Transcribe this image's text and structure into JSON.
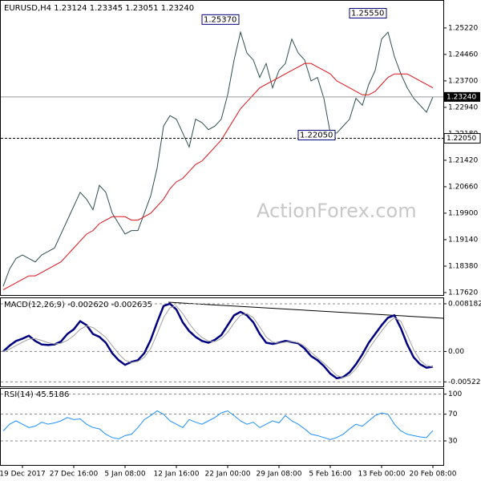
{
  "chart_data": [
    {
      "type": "line",
      "title": "EURUSD,H4 1.23124 1.23345 1.23051 1.23240",
      "watermark": "ActionForex.com",
      "categories": [
        null,
        null,
        null,
        "19 Dec 2017",
        null,
        null,
        null,
        null,
        null,
        null,
        null,
        "27 Dec 16:00",
        null,
        null,
        null,
        null,
        null,
        null,
        null,
        "5 Jan 08:00",
        null,
        null,
        null,
        null,
        null,
        null,
        null,
        "12 Jan 16:00",
        null,
        null,
        null,
        null,
        null,
        null,
        null,
        "22 Jan 00:00",
        null,
        null,
        null,
        null,
        null,
        null,
        null,
        "29 Jan 08:00",
        null,
        null,
        null,
        null,
        null,
        null,
        null,
        "5 Feb 16:00",
        null,
        null,
        null,
        null,
        null,
        null,
        null,
        "13 Feb 00:00",
        null,
        null,
        null,
        null,
        null,
        null,
        null,
        "20 Feb 08:00"
      ],
      "series": [
        {
          "color": "#2f4f4f",
          "values": [
            1.178,
            1.183,
            1.186,
            1.187,
            1.186,
            1.185,
            1.187,
            1.188,
            1.189,
            1.193,
            1.197,
            1.201,
            1.205,
            1.203,
            1.2,
            1.207,
            1.205,
            1.199,
            1.196,
            1.193,
            1.194,
            1.194,
            1.199,
            1.204,
            1.212,
            1.224,
            1.227,
            1.226,
            1.222,
            1.218,
            1.226,
            1.225,
            1.223,
            1.224,
            1.226,
            1.233,
            1.243,
            1.251,
            1.245,
            1.243,
            1.238,
            1.242,
            1.235,
            1.24,
            1.242,
            1.249,
            1.245,
            1.243,
            1.237,
            1.238,
            1.232,
            1.222,
            1.222,
            1.224,
            1.226,
            1.232,
            1.23,
            1.236,
            1.24,
            1.249,
            1.251,
            1.244,
            1.239,
            1.235,
            1.232,
            1.23,
            1.228,
            1.2324
          ]
        },
        {
          "color": "#e0101a",
          "values": [
            1.177,
            1.178,
            1.179,
            1.18,
            1.181,
            1.181,
            1.182,
            1.183,
            1.184,
            1.185,
            1.187,
            1.189,
            1.191,
            1.193,
            1.194,
            1.196,
            1.197,
            1.198,
            1.198,
            1.198,
            1.197,
            1.197,
            1.198,
            1.199,
            1.201,
            1.203,
            1.206,
            1.208,
            1.209,
            1.211,
            1.213,
            1.214,
            1.216,
            1.218,
            1.22,
            1.223,
            1.226,
            1.229,
            1.231,
            1.233,
            1.235,
            1.236,
            1.237,
            1.238,
            1.239,
            1.24,
            1.241,
            1.242,
            1.242,
            1.241,
            1.24,
            1.239,
            1.237,
            1.236,
            1.235,
            1.234,
            1.233,
            1.233,
            1.234,
            1.236,
            1.238,
            1.239,
            1.239,
            1.239,
            1.238,
            1.237,
            1.236,
            1.235
          ]
        }
      ],
      "ylim": [
        1.1755,
        1.26
      ],
      "yticks": [
        {
          "value": 1.2522,
          "label": "1.25220"
        },
        {
          "value": 1.2446,
          "label": "1.24460"
        },
        {
          "value": 1.237,
          "label": "1.23700"
        },
        {
          "value": 1.2294,
          "label": "1.22940"
        },
        {
          "value": 1.2218,
          "label": "1.22180"
        },
        {
          "value": 1.2142,
          "label": "1.21420"
        },
        {
          "value": 1.2066,
          "label": "1.20660"
        },
        {
          "value": 1.199,
          "label": "1.19900"
        },
        {
          "value": 1.1914,
          "label": "1.19140"
        },
        {
          "value": 1.1838,
          "label": "1.18380"
        },
        {
          "value": 1.1762,
          "label": "1.17620"
        }
      ],
      "current_price": {
        "value": 1.2324,
        "label": "1.23240"
      },
      "level": {
        "value": 1.2205,
        "label": "1.22050"
      },
      "annotations": [
        {
          "value": 1.2537,
          "label": "1.25370",
          "index": 37
        },
        {
          "value": 1.2555,
          "label": "1.25550",
          "index": 60
        },
        {
          "value": 1.2205,
          "label": "1.22050",
          "index": 52
        }
      ]
    },
    {
      "type": "line",
      "title": "MACD(12,26,9) -0.002620 -0.002635",
      "series": [
        {
          "color": "#000080",
          "values": [
            0,
            0.001,
            0.0018,
            0.0022,
            0.0027,
            0.0018,
            0.0012,
            0.0011,
            0.0012,
            0.0017,
            0.003,
            0.0038,
            0.0052,
            0.0045,
            0.003,
            0.0025,
            0.0015,
            -0.0003,
            -0.0015,
            -0.0023,
            -0.0018,
            -0.0015,
            -0.0003,
            0.002,
            0.005,
            0.0078,
            0.0082,
            0.0072,
            0.005,
            0.0035,
            0.0025,
            0.0018,
            0.0015,
            0.002,
            0.0028,
            0.0045,
            0.0062,
            0.0068,
            0.0062,
            0.005,
            0.003,
            0.0015,
            0.0013,
            0.0015,
            0.0018,
            0.0016,
            0.0014,
            0.0005,
            -0.0008,
            -0.0015,
            -0.0025,
            -0.0038,
            -0.0046,
            -0.0044,
            -0.0036,
            -0.0022,
            -0.0005,
            0.0015,
            0.003,
            0.0045,
            0.0058,
            0.0062,
            0.004,
            0.0012,
            -0.001,
            -0.0022,
            -0.0028,
            -0.00262
          ]
        },
        {
          "color": "#a0a0a0",
          "values": [
            0,
            0.0004,
            0.001,
            0.0016,
            0.0021,
            0.0022,
            0.0019,
            0.0015,
            0.0013,
            0.0014,
            0.0019,
            0.0027,
            0.0038,
            0.0044,
            0.0041,
            0.0033,
            0.0024,
            0.001,
            -0.0004,
            -0.0015,
            -0.0019,
            -0.0017,
            -0.001,
            0.0005,
            0.003,
            0.0058,
            0.0075,
            0.0078,
            0.0065,
            0.0048,
            0.0034,
            0.0024,
            0.0018,
            0.0017,
            0.0022,
            0.0033,
            0.0049,
            0.0062,
            0.0065,
            0.0058,
            0.0042,
            0.0025,
            0.0016,
            0.0014,
            0.0016,
            0.0017,
            0.0015,
            0.0009,
            -0.0001,
            -0.0011,
            -0.002,
            -0.003,
            -0.0041,
            -0.0045,
            -0.0041,
            -0.003,
            -0.0014,
            0.0004,
            0.002,
            0.0035,
            0.0049,
            0.0058,
            0.0052,
            0.0028,
            0.0003,
            -0.0015,
            -0.0024,
            -0.002635
          ]
        }
      ],
      "ylim": [
        -0.006,
        0.00914
      ],
      "yticks": [
        0.008182,
        {
          "value": 0,
          "label": "0.00"
        },
        -0.005223
      ]
    },
    {
      "type": "line",
      "title": "RSI(14) 45.5186",
      "series": [
        {
          "color": "#1e90ff",
          "values": [
            45,
            55,
            60,
            55,
            50,
            52,
            58,
            55,
            57,
            60,
            65,
            62,
            63,
            55,
            50,
            48,
            40,
            35,
            33,
            38,
            40,
            50,
            62,
            68,
            75,
            70,
            60,
            55,
            50,
            62,
            58,
            55,
            60,
            65,
            72,
            75,
            68,
            60,
            55,
            58,
            50,
            55,
            60,
            57,
            68,
            60,
            55,
            48,
            40,
            38,
            35,
            32,
            35,
            40,
            48,
            55,
            52,
            60,
            68,
            72,
            70,
            55,
            45,
            40,
            38,
            36,
            35,
            45.5
          ]
        }
      ],
      "ylim": [
        -6,
        108
      ],
      "yticks": [
        100,
        70,
        30
      ]
    }
  ]
}
